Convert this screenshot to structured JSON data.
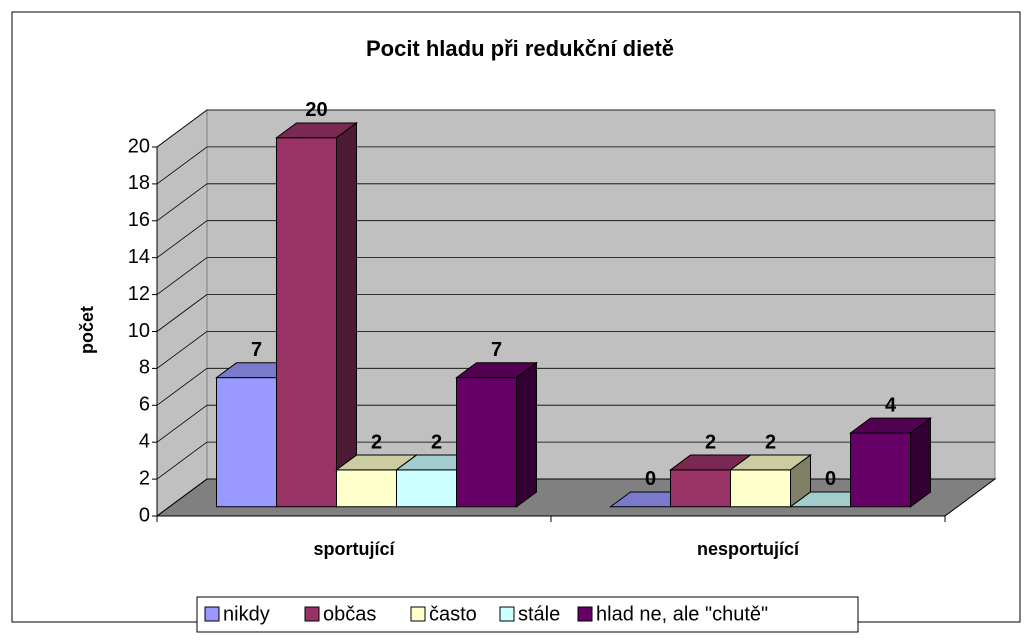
{
  "chart_data": {
    "type": "bar3d",
    "title": "Pocit hladu při redukční dietě",
    "y_label": "počet",
    "categories": [
      "sportující",
      "nesportující"
    ],
    "series": [
      {
        "name": "nikdy",
        "color": "#9999ff",
        "values": [
          7,
          0
        ]
      },
      {
        "name": "občas",
        "color": "#993366",
        "values": [
          20,
          2
        ]
      },
      {
        "name": "často",
        "color": "#ffffcc",
        "values": [
          2,
          2
        ]
      },
      {
        "name": "stále",
        "color": "#ccffff",
        "values": [
          2,
          0
        ]
      },
      {
        "name": "hlad ne, ale \"chutě\"",
        "color": "#660066",
        "values": [
          7,
          4
        ]
      }
    ],
    "ylim": [
      0,
      20
    ],
    "yticks": [
      0,
      2,
      4,
      6,
      8,
      10,
      12,
      14,
      16,
      18,
      20
    ],
    "grid": true,
    "legend": "bottom"
  }
}
